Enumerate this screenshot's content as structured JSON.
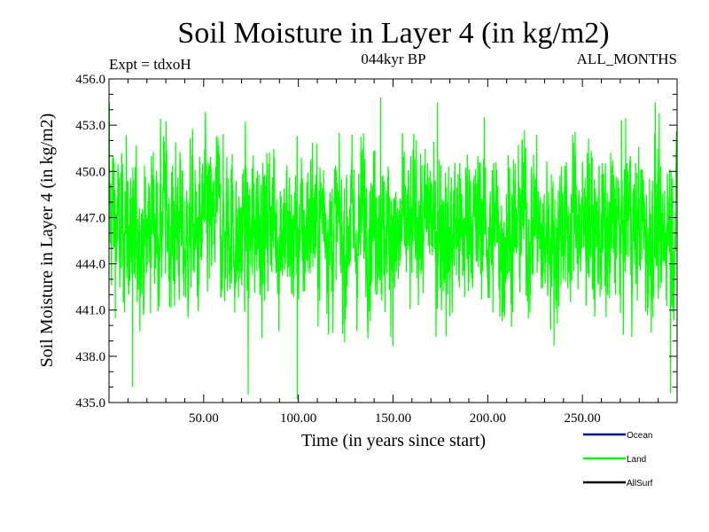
{
  "chart_data": {
    "type": "line",
    "title": "Soil Moisture in Layer 4 (in kg/m2)",
    "subtitle_left": "Expt = tdxoH",
    "subtitle_center": "044kyr BP",
    "subtitle_right": "ALL_MONTHS",
    "xlabel": "Time (in years since start)",
    "ylabel": "Soil Moisture in Layer 4 (in kg/m2)",
    "xlim": [
      0,
      300
    ],
    "ylim": [
      435.0,
      456.0
    ],
    "x_ticks": [
      50,
      100,
      150,
      200,
      250
    ],
    "x_tick_labels": [
      "50.00",
      "100.00",
      "150.00",
      "200.00",
      "250.00"
    ],
    "y_ticks": [
      435,
      438,
      441,
      444,
      447,
      450,
      453,
      456
    ],
    "y_tick_labels": [
      "435.0",
      "438.0",
      "441.0",
      "444.0",
      "447.0",
      "450.0",
      "453.0",
      "456.0"
    ],
    "legend_position": "bottom-right",
    "series": [
      {
        "name": "Ocean",
        "color": "#0000cc",
        "values": []
      },
      {
        "name": "Land",
        "color": "#00ff00",
        "sampling": "monthly, 3600 points over 300 years",
        "mean": 446.3,
        "range": [
          435.3,
          454.7
        ],
        "anchor_points": [
          {
            "x": 0.2,
            "y": 454.5
          },
          {
            "x": 12.5,
            "y": 436.0
          },
          {
            "x": 73.5,
            "y": 435.5
          },
          {
            "x": 99.5,
            "y": 435.2
          },
          {
            "x": 143.5,
            "y": 454.8
          },
          {
            "x": 173.5,
            "y": 454.5
          },
          {
            "x": 288.5,
            "y": 454.5
          },
          {
            "x": 296.5,
            "y": 435.6
          }
        ]
      },
      {
        "name": "AllSurf",
        "color": "#000000",
        "values": []
      }
    ]
  }
}
